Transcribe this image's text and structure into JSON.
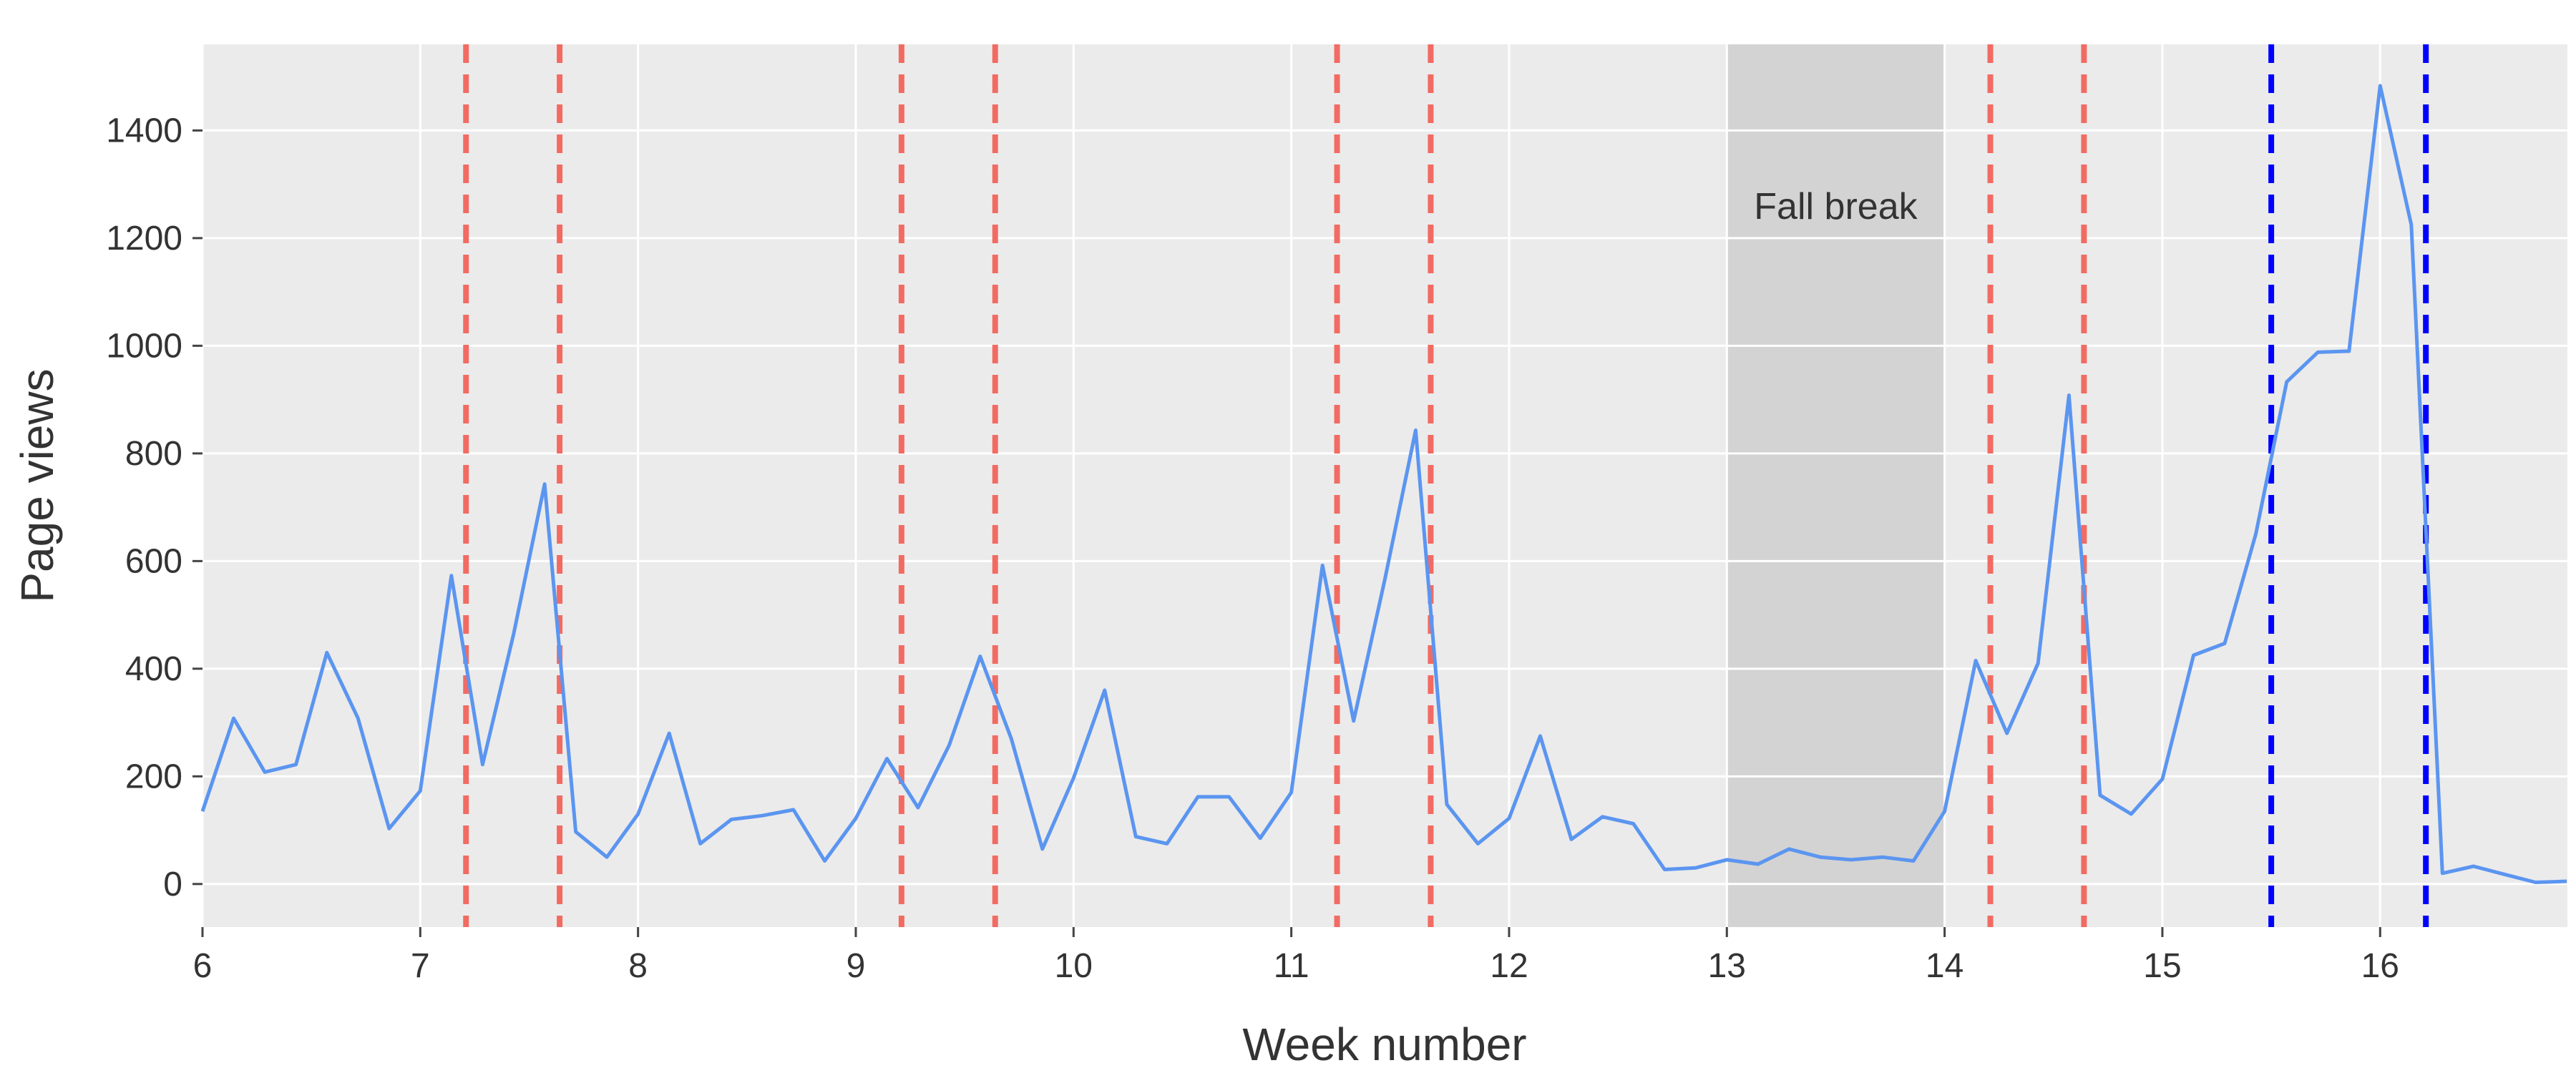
{
  "chart_data": {
    "type": "line",
    "title": "",
    "xlabel": "Week number",
    "ylabel": "Page views",
    "xlim": [
      6,
      16.86
    ],
    "ylim": [
      -80,
      1560
    ],
    "xticks": [
      6,
      7,
      8,
      9,
      10,
      11,
      12,
      13,
      14,
      15,
      16
    ],
    "yticks": [
      0,
      200,
      400,
      600,
      800,
      1000,
      1200,
      1400
    ],
    "grid": true,
    "background": "#ebebeb",
    "series": [
      {
        "color": "#5b95f0",
        "x": [
          6,
          6.143,
          6.286,
          6.429,
          6.571,
          6.714,
          6.857,
          7,
          7.143,
          7.286,
          7.429,
          7.571,
          7.714,
          7.857,
          8,
          8.143,
          8.286,
          8.429,
          8.571,
          8.714,
          8.857,
          9,
          9.143,
          9.286,
          9.429,
          9.571,
          9.714,
          9.857,
          10,
          10.143,
          10.286,
          10.429,
          10.571,
          10.714,
          10.857,
          11,
          11.143,
          11.286,
          11.429,
          11.571,
          11.714,
          11.857,
          12,
          12.143,
          12.286,
          12.429,
          12.571,
          12.714,
          12.857,
          13,
          13.143,
          13.286,
          13.429,
          13.571,
          13.714,
          13.857,
          14,
          14.143,
          14.286,
          14.429,
          14.571,
          14.714,
          14.857,
          15,
          15.143,
          15.286,
          15.429,
          15.571,
          15.714,
          15.857,
          16,
          16.143,
          16.286,
          16.429,
          16.571,
          16.714,
          16.857
        ],
        "y": [
          135,
          308,
          208,
          222,
          430,
          308,
          103,
          173,
          573,
          222,
          465,
          743,
          97,
          50,
          130,
          280,
          75,
          120,
          127,
          138,
          43,
          122,
          233,
          142,
          258,
          423,
          270,
          65,
          197,
          360,
          88,
          75,
          162,
          162,
          85,
          170,
          592,
          303,
          565,
          843,
          148,
          75,
          122,
          275,
          83,
          125,
          112,
          27,
          30,
          45,
          37,
          65,
          50,
          45,
          50,
          43,
          135,
          415,
          280,
          410,
          908,
          165,
          130,
          195,
          425,
          447,
          650,
          933,
          988,
          990,
          1483,
          1225,
          20,
          33,
          18,
          3,
          5
        ]
      }
    ],
    "vlines": [
      {
        "x": 7.21,
        "color": "#f26b63"
      },
      {
        "x": 7.64,
        "color": "#f26b63"
      },
      {
        "x": 9.21,
        "color": "#f26b63"
      },
      {
        "x": 9.64,
        "color": "#f26b63"
      },
      {
        "x": 11.21,
        "color": "#f26b63"
      },
      {
        "x": 11.64,
        "color": "#f26b63"
      },
      {
        "x": 14.21,
        "color": "#f26b63"
      },
      {
        "x": 14.64,
        "color": "#f26b63"
      },
      {
        "x": 15.5,
        "color": "#0000ff"
      },
      {
        "x": 16.21,
        "color": "#0000ff"
      }
    ],
    "shaded_regions": [
      {
        "x0": 13,
        "x1": 14,
        "label": "Fall break",
        "color": "#d3d3d3"
      }
    ]
  }
}
